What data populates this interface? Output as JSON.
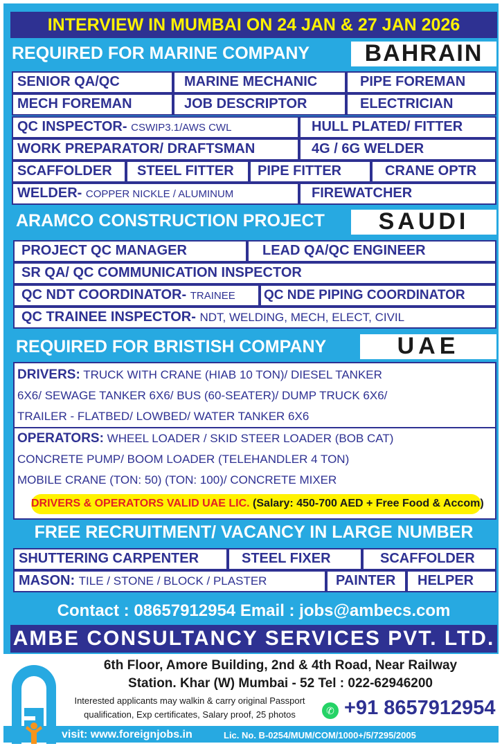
{
  "header": {
    "interview": "INTERVIEW IN MUMBAI ON 24 JAN & 27 JAN 2026"
  },
  "bahrain": {
    "heading": "REQUIRED FOR MARINE COMPANY",
    "country": "BAHRAIN",
    "jobs": [
      "SENIOR QA/QC",
      "MARINE MECHANIC",
      "PIPE FOREMAN",
      "MECH FOREMAN",
      "JOB DESCRIPTOR",
      "ELECTRICIAN"
    ],
    "qc_inspector": "QC INSPECTOR-",
    "qc_inspector_note": "CSWIP3.1/AWS CWL",
    "hull": "HULL PLATED/ FITTER",
    "work_prep": "WORK PREPARATOR/ DRAFTSMAN",
    "welder4g": "4G / 6G WELDER",
    "row5": [
      "SCAFFOLDER",
      "STEEL FITTER",
      "PIPE FITTER",
      "CRANE OPTR"
    ],
    "welder": "WELDER-",
    "welder_note": "COPPER NICKLE / ALUMINUM",
    "firewatcher": "FIREWATCHER"
  },
  "saudi": {
    "heading": "ARAMCO CONSTRUCTION PROJECT",
    "country": "SAUDI",
    "qc_manager": "PROJECT QC MANAGER",
    "lead": "LEAD QA/QC ENGINEER",
    "sr": "SR QA/ QC COMMUNICATION INSPECTOR",
    "ndt": "QC NDT COORDINATOR-",
    "ndt_note": "TRAINEE",
    "nde": "QC NDE PIPING COORDINATOR",
    "trainee": "QC TRAINEE INSPECTOR-",
    "trainee_note": "NDT, WELDING, MECH, ELECT, CIVIL"
  },
  "uae": {
    "heading": "REQUIRED FOR BRISTISH COMPANY",
    "country": "UAE",
    "drivers_label": "DRIVERS:",
    "drivers_lines": [
      "TRUCK WITH CRANE (HIAB 10 TON)/ DIESEL TANKER",
      "6X6/ SEWAGE TANKER 6X6/ BUS (60-SEATER)/ DUMP TRUCK 6X6/",
      "TRAILER - FLATBED/ LOWBED/ WATER TANKER 6X6"
    ],
    "operators_label": "OPERATORS:",
    "operators_lines": [
      "WHEEL LOADER / SKID STEER LOADER (BOB CAT)",
      "CONCRETE PUMP/ BOOM LOADER  (TELEHANDLER 4 TON)",
      "MOBILE CRANE  (TON: 50) (TON: 100)/ CONCRETE MIXER"
    ],
    "lic": "DRIVERS & OPERATORS VALID UAE LIC.",
    "salary": "(Salary: 450-700 AED + Free Food & Accom)"
  },
  "general": {
    "heading": "FREE RECRUITMENT/  VACANCY IN LARGE NUMBER",
    "row1": [
      "SHUTTERING CARPENTER",
      "STEEL FIXER",
      "SCAFFOLDER"
    ],
    "mason": "MASON:",
    "mason_note": "TILE / STONE / BLOCK / PLASTER",
    "painter": "PAINTER",
    "helper": "HELPER"
  },
  "contact": {
    "line": "Contact : 08657912954 Email : jobs@ambecs.com",
    "company": "AMBE CONSULTANCY SERVICES PVT. LTD.",
    "address1": "6th Floor, Amore Building, 2nd & 4th Road, Near Railway",
    "address2": "Station. Khar (W) Mumbai - 52 Tel : 022-62946200",
    "note1": "Interested applicants may walkin & carry original Passport",
    "note2": "qualification, Exp certificates, Salary proof, 25 photos",
    "whatsapp": "+91 8657912954",
    "visit": "visit: www.foreignjobs.in",
    "license": "Lic. No. B-0254/MUM/COM/1000+/5/7295/2005"
  },
  "colors": {
    "navy": "#2e3192",
    "sky": "#27a9e1",
    "yellow": "#fff200",
    "red": "#e31e24",
    "orange": "#f7941d",
    "whatsapp": "#25d366"
  }
}
